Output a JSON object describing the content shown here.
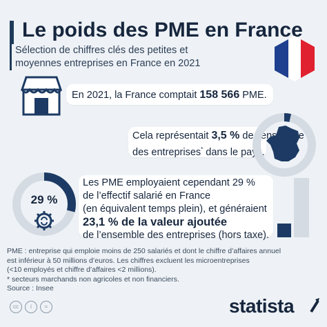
{
  "title": "Le poids des PME en France",
  "subtitle": [
    "Sélection de chiffres clés des petites et",
    "moyennes entreprises en France en 2021"
  ],
  "block1": {
    "pre": "En 2021, la France comptait ",
    "value": "158 566",
    "post": " PME."
  },
  "block2": {
    "pre": "Cela représentait ",
    "value": "3,5 %",
    "mid": " de l’ensemble",
    "line2": "des entreprises",
    "sup": "*",
    "post": " dans le pays.",
    "share": 0.035
  },
  "block3": {
    "l1": "Les PME employaient cependant 29 %",
    "l2": "de l’effectif salarié en France",
    "l3": "(en équivalent temps plein), et généraient",
    "l4_bold": "23,1 % de la valeur ajoutée",
    "l5": "de l’ensemble des entreprises (hors taxe).",
    "donut_label": "29 %",
    "employment_share": 0.29,
    "value_added_share": 0.231
  },
  "notes": [
    "PME : entreprise qui emploie moins de 250 salariés et dont le chiffre d’affaires annuel",
    "est inférieur à 50 millions d’euros. Les chiffres excluent les microentreprises",
    "(<10 employés et chiffre d’affaires <2 millions).",
    "* secteurs marchands non agricoles et non financiers.",
    "Source : Insee"
  ],
  "brand": "statista",
  "colors": {
    "navy": "#1c3a63",
    "light": "#d5dbe2",
    "flag_blue": "#1f3f8f",
    "flag_red": "#e0212f"
  }
}
